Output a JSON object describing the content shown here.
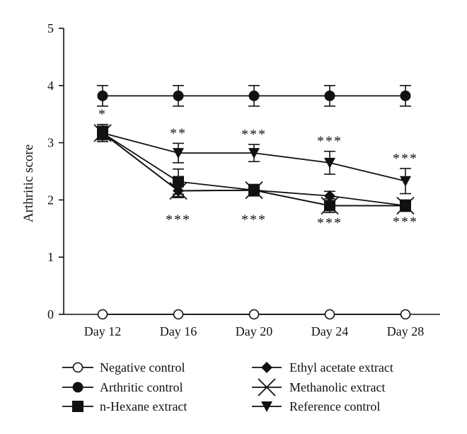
{
  "chart_data": {
    "type": "line",
    "categories": [
      "Day 12",
      "Day 16",
      "Day 20",
      "Day 24",
      "Day 28"
    ],
    "ylabel": "Arthritic score",
    "ylim": [
      0,
      5
    ],
    "yticks": [
      "0",
      "1",
      "2",
      "3",
      "4",
      "5"
    ],
    "grid": false,
    "legend_position": "bottom",
    "series": [
      {
        "name": "Negative control",
        "marker": "open-circle",
        "values": [
          0,
          0,
          0,
          0,
          0
        ],
        "error": [
          0,
          0,
          0,
          0,
          0
        ],
        "stars": [
          "",
          "",
          "",
          "",
          ""
        ],
        "star_pos": [
          "",
          "",
          "",
          "",
          ""
        ]
      },
      {
        "name": "Arthritic control",
        "marker": "filled-circle",
        "values": [
          3.82,
          3.82,
          3.82,
          3.82,
          3.82
        ],
        "error": [
          0.18,
          0.18,
          0.18,
          0.18,
          0.18
        ],
        "stars": [
          "",
          "",
          "",
          "",
          ""
        ],
        "star_pos": [
          "",
          "",
          "",
          "",
          ""
        ]
      },
      {
        "name": "n-Hexane extract",
        "marker": "filled-square",
        "values": [
          3.17,
          2.32,
          2.17,
          1.9,
          1.9
        ],
        "error": [
          0.15,
          0.22,
          0.08,
          0.08,
          0.06
        ],
        "stars": [
          "*",
          "***",
          "***",
          "***",
          "***"
        ],
        "star_pos": [
          "above",
          "below",
          "below",
          "below",
          "below"
        ]
      },
      {
        "name": "Ethyl acetate extract",
        "marker": "filled-diamond",
        "values": [
          3.17,
          2.16,
          2.17,
          2.07,
          1.9
        ],
        "error": [
          0.1,
          0.1,
          0.1,
          0.08,
          0.06
        ],
        "stars": [
          "",
          "",
          "",
          "",
          ""
        ],
        "star_pos": [
          "",
          "",
          "",
          "",
          ""
        ]
      },
      {
        "name": "Methanolic extract",
        "marker": "x-cross",
        "values": [
          3.17,
          2.16,
          2.17,
          1.9,
          1.9
        ],
        "error": [
          0.1,
          0.12,
          0.1,
          0.12,
          0.1
        ],
        "stars": [
          "",
          "",
          "",
          "",
          ""
        ],
        "star_pos": [
          "",
          "",
          "",
          "",
          ""
        ]
      },
      {
        "name": "Reference control",
        "marker": "filled-triangle-down",
        "values": [
          3.17,
          2.82,
          2.82,
          2.65,
          2.33
        ],
        "error": [
          0.12,
          0.17,
          0.15,
          0.2,
          0.22
        ],
        "stars": [
          "",
          "**",
          "***",
          "***",
          "***"
        ],
        "star_pos": [
          "",
          "above",
          "above",
          "above",
          "above"
        ]
      }
    ]
  },
  "legend": {
    "left": [
      "Negative control",
      "Arthritic control",
      "n-Hexane extract"
    ],
    "right": [
      "Ethyl acetate extract",
      "Methanolic extract",
      "Reference control"
    ]
  }
}
